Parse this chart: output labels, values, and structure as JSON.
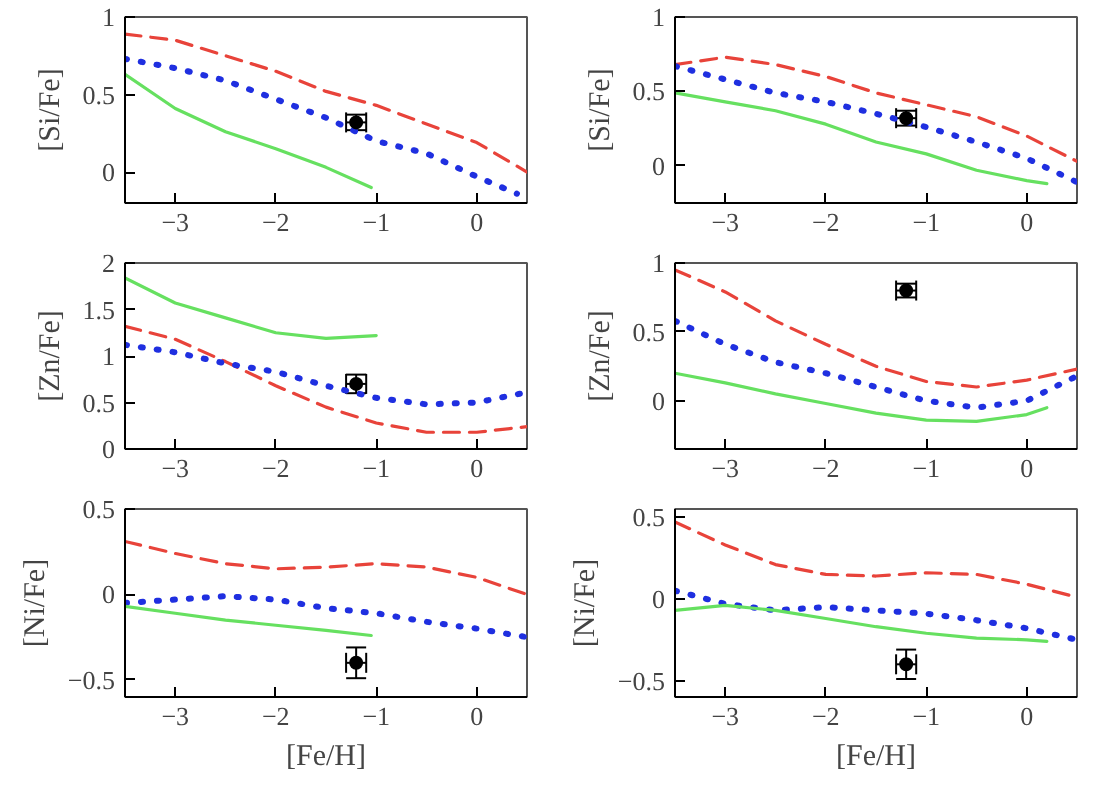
{
  "chart_data": [
    {
      "type": "line",
      "ylabel": "[Si/Fe]",
      "xlim": [
        -3.5,
        0.5
      ],
      "ylim": [
        -0.2,
        1
      ],
      "xticks": [
        -3,
        -2,
        -1,
        0
      ],
      "yticks": [
        0,
        0.5,
        1
      ],
      "series": [
        {
          "color": "#e8433a",
          "line_style": "dashed",
          "x": [
            -3.5,
            -3,
            -2.5,
            -2,
            -1.5,
            -1,
            -0.5,
            0,
            0.5
          ],
          "values": [
            0.89,
            0.85,
            0.75,
            0.65,
            0.52,
            0.43,
            0.31,
            0.19,
            0
          ]
        },
        {
          "color": "#1f2fe0",
          "line_style": "dotted",
          "x": [
            -3.5,
            -3,
            -2.5,
            -2,
            -1.5,
            -1,
            -0.5,
            0,
            0.4
          ],
          "values": [
            0.73,
            0.67,
            0.59,
            0.47,
            0.35,
            0.2,
            0.12,
            -0.03,
            -0.14
          ]
        },
        {
          "color": "#66e060",
          "line_style": "solid",
          "x": [
            -3.5,
            -3,
            -2.5,
            -2,
            -1.5,
            -1.05
          ],
          "values": [
            0.63,
            0.41,
            0.26,
            0.15,
            0.03,
            -0.1
          ]
        },
        {
          "type": "scatter",
          "marker": "circle",
          "color": "#000000",
          "x": [
            -1.2
          ],
          "values": [
            0.32
          ],
          "errors": [
            0.05
          ],
          "xerrors": [
            0.1
          ]
        }
      ]
    },
    {
      "type": "line",
      "ylabel": "[Si/Fe]",
      "xlim": [
        -3.5,
        0.5
      ],
      "ylim": [
        -0.25,
        1
      ],
      "xticks": [
        -3,
        -2,
        -1,
        0
      ],
      "yticks": [
        0,
        0.5,
        1
      ],
      "series": [
        {
          "color": "#e8433a",
          "line_style": "dashed",
          "x": [
            -3.5,
            -3,
            -2.5,
            -2,
            -1.5,
            -1,
            -0.5,
            0,
            0.5
          ],
          "values": [
            0.68,
            0.73,
            0.68,
            0.6,
            0.49,
            0.41,
            0.33,
            0.2,
            0.03
          ]
        },
        {
          "color": "#1f2fe0",
          "line_style": "dotted",
          "x": [
            -3.5,
            -3,
            -2.5,
            -2,
            -1.5,
            -1,
            -0.5,
            0,
            0.5
          ],
          "values": [
            0.67,
            0.58,
            0.49,
            0.43,
            0.35,
            0.26,
            0.16,
            0.05,
            -0.11
          ]
        },
        {
          "color": "#66e060",
          "line_style": "solid",
          "x": [
            -3.5,
            -3,
            -2.5,
            -2,
            -1.5,
            -1,
            -0.5,
            0,
            0.2
          ],
          "values": [
            0.49,
            0.43,
            0.37,
            0.28,
            0.16,
            0.08,
            -0.03,
            -0.1,
            -0.12
          ]
        },
        {
          "type": "scatter",
          "marker": "circle",
          "color": "#000000",
          "x": [
            -1.2
          ],
          "values": [
            0.32
          ],
          "errors": [
            0.05
          ],
          "xerrors": [
            0.1
          ]
        }
      ]
    },
    {
      "type": "line",
      "ylabel": "[Zn/Fe]",
      "xlim": [
        -3.5,
        0.5
      ],
      "ylim": [
        0,
        2
      ],
      "xticks": [
        -3,
        -2,
        -1,
        0
      ],
      "yticks": [
        0,
        0.5,
        1,
        1.5,
        2
      ],
      "series": [
        {
          "color": "#66e060",
          "line_style": "solid",
          "x": [
            -3.5,
            -3,
            -2.5,
            -2,
            -1.5,
            -1
          ],
          "values": [
            1.84,
            1.57,
            1.41,
            1.25,
            1.19,
            1.22
          ]
        },
        {
          "color": "#e8433a",
          "line_style": "dashed",
          "x": [
            -3.5,
            -3,
            -2.5,
            -2,
            -1.5,
            -1,
            -0.5,
            0,
            0.5
          ],
          "values": [
            1.32,
            1.18,
            0.94,
            0.68,
            0.45,
            0.28,
            0.18,
            0.18,
            0.24
          ]
        },
        {
          "color": "#1f2fe0",
          "line_style": "dotted",
          "x": [
            -3.5,
            -3,
            -2.5,
            -2,
            -1.5,
            -1,
            -0.5,
            0,
            0.5
          ],
          "values": [
            1.12,
            1.04,
            0.92,
            0.83,
            0.68,
            0.55,
            0.48,
            0.5,
            0.61
          ]
        },
        {
          "type": "scatter",
          "marker": "circle",
          "color": "#000000",
          "x": [
            -1.2
          ],
          "values": [
            0.7
          ],
          "errors": [
            0.1
          ],
          "xerrors": [
            0.1
          ]
        }
      ]
    },
    {
      "type": "line",
      "ylabel": "[Zn/Fe]",
      "xlim": [
        -3.5,
        0.5
      ],
      "ylim": [
        -0.35,
        1
      ],
      "xticks": [
        -3,
        -2,
        -1,
        0
      ],
      "yticks": [
        0,
        0.5,
        1
      ],
      "series": [
        {
          "color": "#e8433a",
          "line_style": "dashed",
          "x": [
            -3.5,
            -3,
            -2.5,
            -2,
            -1.5,
            -1,
            -0.5,
            0,
            0.5
          ],
          "values": [
            0.95,
            0.79,
            0.58,
            0.41,
            0.25,
            0.14,
            0.1,
            0.15,
            0.23
          ]
        },
        {
          "color": "#1f2fe0",
          "line_style": "dotted",
          "x": [
            -3.5,
            -3,
            -2.5,
            -2,
            -1.5,
            -1,
            -0.5,
            0,
            0.5
          ],
          "values": [
            0.58,
            0.41,
            0.28,
            0.2,
            0.1,
            0,
            -0.05,
            0,
            0.18
          ]
        },
        {
          "color": "#66e060",
          "line_style": "solid",
          "x": [
            -3.5,
            -3,
            -2.5,
            -2,
            -1.5,
            -1,
            -0.5,
            0,
            0.2
          ],
          "values": [
            0.2,
            0.13,
            0.05,
            -0.02,
            -0.09,
            -0.14,
            -0.15,
            -0.1,
            -0.05
          ]
        },
        {
          "type": "scatter",
          "marker": "circle",
          "color": "#000000",
          "x": [
            -1.2
          ],
          "values": [
            0.8
          ],
          "errors": [
            0.05
          ],
          "xerrors": [
            0.1
          ]
        }
      ]
    },
    {
      "type": "line",
      "xlabel": "[Fe/H]",
      "ylabel": "[Ni/Fe]",
      "xlim": [
        -3.5,
        0.5
      ],
      "ylim": [
        -0.6,
        0.5
      ],
      "xticks": [
        -3,
        -2,
        -1,
        0
      ],
      "yticks": [
        -0.5,
        0,
        0.5
      ],
      "series": [
        {
          "color": "#e8433a",
          "line_style": "dashed",
          "x": [
            -3.5,
            -3,
            -2.5,
            -2,
            -1.5,
            -1,
            -0.5,
            0,
            0.5
          ],
          "values": [
            0.31,
            0.24,
            0.18,
            0.15,
            0.16,
            0.18,
            0.16,
            0.1,
            0
          ]
        },
        {
          "color": "#1f2fe0",
          "line_style": "dotted",
          "x": [
            -3.5,
            -3,
            -2.5,
            -2,
            -1.5,
            -1,
            -0.5,
            0,
            0.5
          ],
          "values": [
            -0.05,
            -0.03,
            -0.01,
            -0.03,
            -0.08,
            -0.11,
            -0.16,
            -0.2,
            -0.25
          ]
        },
        {
          "color": "#66e060",
          "line_style": "solid",
          "x": [
            -3.5,
            -3,
            -2.5,
            -2,
            -1.5,
            -1.05
          ],
          "values": [
            -0.07,
            -0.11,
            -0.15,
            -0.18,
            -0.21,
            -0.24
          ]
        },
        {
          "type": "scatter",
          "marker": "circle",
          "color": "#000000",
          "x": [
            -1.2
          ],
          "values": [
            -0.4
          ],
          "errors": [
            0.09
          ],
          "xerrors": [
            0.1
          ]
        }
      ]
    },
    {
      "type": "line",
      "xlabel": "[Fe/H]",
      "ylabel": "[Ni/Fe]",
      "xlim": [
        -3.5,
        0.5
      ],
      "ylim": [
        -0.6,
        0.55
      ],
      "xticks": [
        -3,
        -2,
        -1,
        0
      ],
      "yticks": [
        -0.5,
        0,
        0.5
      ],
      "series": [
        {
          "color": "#e8433a",
          "line_style": "dashed",
          "x": [
            -3.5,
            -3,
            -2.5,
            -2,
            -1.5,
            -1,
            -0.5,
            0,
            0.5
          ],
          "values": [
            0.47,
            0.33,
            0.21,
            0.15,
            0.14,
            0.16,
            0.15,
            0.09,
            0.01
          ]
        },
        {
          "color": "#1f2fe0",
          "line_style": "dotted",
          "x": [
            -3.5,
            -3,
            -2.5,
            -2,
            -1.5,
            -1,
            -0.5,
            0,
            0.5
          ],
          "values": [
            0.05,
            -0.03,
            -0.07,
            -0.05,
            -0.07,
            -0.09,
            -0.13,
            -0.18,
            -0.25
          ]
        },
        {
          "color": "#66e060",
          "line_style": "solid",
          "x": [
            -3.5,
            -3,
            -2.5,
            -2,
            -1.5,
            -1,
            -0.5,
            0,
            0.2
          ],
          "values": [
            -0.07,
            -0.04,
            -0.07,
            -0.12,
            -0.17,
            -0.21,
            -0.24,
            -0.25,
            -0.26
          ]
        },
        {
          "type": "scatter",
          "marker": "circle",
          "color": "#000000",
          "x": [
            -1.2
          ],
          "values": [
            -0.4
          ],
          "errors": [
            0.09
          ],
          "xerrors": [
            0.1
          ]
        }
      ]
    }
  ]
}
